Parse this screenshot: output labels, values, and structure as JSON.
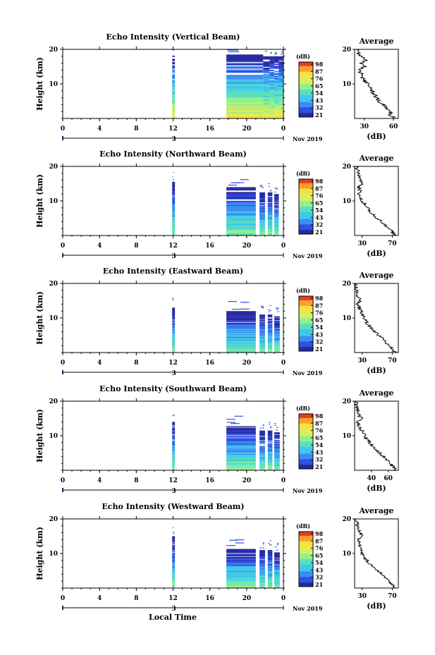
{
  "figure": {
    "xlabel": "Local Time",
    "date_label": "Nov 2019",
    "colorbar_unit": "(dB)",
    "colorbar_ticks": [
      "98",
      "87",
      "76",
      "65",
      "54",
      "43",
      "32",
      "21"
    ],
    "colormap": [
      "#2a2aa0",
      "#3050e0",
      "#3a8ef0",
      "#40c8e8",
      "#5ae0c0",
      "#90f090",
      "#d8f060",
      "#f8e040",
      "#f8a030",
      "#e04020"
    ]
  },
  "chart_data": [
    {
      "type": "heatmap",
      "title": "Echo Intensity (Vertical Beam)",
      "ylabel": "Height (km)",
      "xlim": [
        0,
        24
      ],
      "ylim": [
        0,
        20
      ],
      "xticks": [
        "0",
        "4",
        "8",
        "12",
        "16",
        "20",
        "0"
      ],
      "yticks": [
        "20",
        "10"
      ],
      "day_label": "3",
      "columns": [
        {
          "start": 11.9,
          "end": 12.2,
          "top": 18.5
        },
        {
          "start": 17.8,
          "end": 21.8,
          "top": 18.5
        },
        {
          "start": 21.8,
          "end": 22.5,
          "top": 18
        },
        {
          "start": 22.5,
          "end": 23.0,
          "top": 18
        },
        {
          "start": 23.0,
          "end": 23.5,
          "top": 18
        },
        {
          "start": 23.5,
          "end": 24.0,
          "top": 18
        }
      ],
      "profile": {
        "title": "Average",
        "xlabel": "(dB)",
        "xticks": [
          "30",
          "60"
        ],
        "xlim": [
          20,
          65
        ],
        "y": [
          0,
          1,
          2,
          3,
          4,
          5,
          6,
          7,
          8,
          9,
          10,
          11,
          12,
          13,
          14,
          15,
          16,
          17,
          18,
          19,
          20
        ],
        "values": [
          63,
          55,
          58,
          52,
          50,
          45,
          43,
          40,
          38,
          36,
          33,
          30,
          28,
          27,
          25,
          30,
          27,
          32,
          26,
          24,
          22
        ]
      }
    },
    {
      "type": "heatmap",
      "title": "Echo Intensity (Northward Beam)",
      "ylabel": "Height (km)",
      "xlim": [
        0,
        24
      ],
      "ylim": [
        0,
        20
      ],
      "xticks": [
        "0",
        "4",
        "8",
        "12",
        "16",
        "20",
        "0"
      ],
      "yticks": [
        "20",
        "10"
      ],
      "day_label": "3",
      "columns": [
        {
          "start": 11.9,
          "end": 12.2,
          "top": 15.5
        },
        {
          "start": 17.8,
          "end": 21.0,
          "top": 14
        },
        {
          "start": 21.4,
          "end": 22.0,
          "top": 12.5
        },
        {
          "start": 22.3,
          "end": 22.8,
          "top": 12.5
        },
        {
          "start": 23.0,
          "end": 23.5,
          "top": 12
        }
      ],
      "profile": {
        "title": "Average",
        "xlabel": "(dB)",
        "xticks": [
          "30",
          "70"
        ],
        "xlim": [
          20,
          78
        ],
        "y": [
          0,
          1,
          2,
          3,
          4,
          5,
          6,
          7,
          8,
          9,
          10,
          11,
          12,
          13,
          14,
          15,
          16,
          17,
          18,
          19,
          20
        ],
        "values": [
          72,
          70,
          66,
          60,
          56,
          50,
          45,
          40,
          37,
          34,
          30,
          28,
          26,
          27,
          25,
          30,
          28,
          27,
          25,
          24,
          22
        ]
      }
    },
    {
      "type": "heatmap",
      "title": "Echo Intensity (Eastward Beam)",
      "ylabel": "Height (km)",
      "xlim": [
        0,
        24
      ],
      "ylim": [
        0,
        20
      ],
      "xticks": [
        "0",
        "4",
        "8",
        "12",
        "16",
        "20",
        "0"
      ],
      "yticks": [
        "20",
        "10"
      ],
      "day_label": "3",
      "columns": [
        {
          "start": 11.9,
          "end": 12.2,
          "top": 13
        },
        {
          "start": 17.8,
          "end": 21.0,
          "top": 12
        },
        {
          "start": 21.4,
          "end": 22.0,
          "top": 11
        },
        {
          "start": 22.3,
          "end": 22.8,
          "top": 11
        },
        {
          "start": 23.0,
          "end": 23.6,
          "top": 10.5
        }
      ],
      "profile": {
        "title": "Average",
        "xlabel": "(dB)",
        "xticks": [
          "30",
          "70"
        ],
        "xlim": [
          20,
          78
        ],
        "y": [
          0,
          1,
          2,
          3,
          4,
          5,
          6,
          7,
          8,
          9,
          10,
          11,
          12,
          13,
          14,
          15,
          16,
          17,
          18,
          19,
          20
        ],
        "values": [
          74,
          70,
          66,
          62,
          58,
          52,
          47,
          42,
          38,
          35,
          32,
          30,
          28,
          26,
          24,
          28,
          25,
          24,
          23,
          22,
          21
        ]
      }
    },
    {
      "type": "heatmap",
      "title": "Echo Intensity (Southward Beam)",
      "ylabel": "Height (km)",
      "xlim": [
        0,
        24
      ],
      "ylim": [
        0,
        20
      ],
      "xticks": [
        "0",
        "4",
        "8",
        "12",
        "16",
        "20",
        "0"
      ],
      "yticks": [
        "20",
        "10"
      ],
      "day_label": "3",
      "columns": [
        {
          "start": 11.9,
          "end": 12.2,
          "top": 14
        },
        {
          "start": 17.8,
          "end": 21.0,
          "top": 13
        },
        {
          "start": 21.4,
          "end": 22.0,
          "top": 11.5
        },
        {
          "start": 22.3,
          "end": 22.8,
          "top": 11.5
        },
        {
          "start": 23.0,
          "end": 23.6,
          "top": 11
        }
      ],
      "profile": {
        "title": "Average",
        "xlabel": "(dB)",
        "xticks": [
          "40",
          "60"
        ],
        "xlim": [
          20,
          72
        ],
        "y": [
          0,
          1,
          2,
          3,
          4,
          5,
          6,
          7,
          8,
          9,
          10,
          11,
          12,
          13,
          14,
          15,
          16,
          17,
          18,
          19,
          20
        ],
        "values": [
          68,
          66,
          62,
          58,
          54,
          50,
          46,
          42,
          38,
          35,
          32,
          30,
          27,
          25,
          24,
          28,
          25,
          24,
          23,
          22,
          21
        ]
      }
    },
    {
      "type": "heatmap",
      "title": "Echo Intensity (Westward Beam)",
      "ylabel": "Height (km)",
      "xlim": [
        0,
        24
      ],
      "ylim": [
        0,
        20
      ],
      "xticks": [
        "0",
        "4",
        "8",
        "12",
        "16",
        "20",
        "0"
      ],
      "yticks": [
        "20",
        "10"
      ],
      "day_label": "3",
      "columns": [
        {
          "start": 11.9,
          "end": 12.2,
          "top": 15
        },
        {
          "start": 17.8,
          "end": 21.0,
          "top": 11.5
        },
        {
          "start": 21.4,
          "end": 22.0,
          "top": 11
        },
        {
          "start": 22.3,
          "end": 22.8,
          "top": 11
        },
        {
          "start": 23.0,
          "end": 23.6,
          "top": 10.5
        }
      ],
      "profile": {
        "title": "Average",
        "xlabel": "(dB)",
        "xticks": [
          "30",
          "70"
        ],
        "xlim": [
          20,
          78
        ],
        "y": [
          0,
          1,
          2,
          3,
          4,
          5,
          6,
          7,
          8,
          9,
          10,
          11,
          12,
          13,
          14,
          15,
          16,
          17,
          18,
          19,
          20
        ],
        "values": [
          74,
          70,
          66,
          60,
          56,
          50,
          45,
          40,
          36,
          33,
          30,
          28,
          26,
          27,
          25,
          30,
          27,
          25,
          24,
          23,
          22
        ]
      }
    }
  ]
}
